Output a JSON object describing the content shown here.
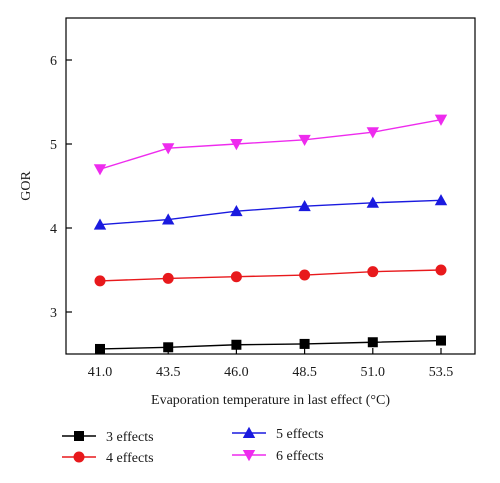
{
  "chart_data": {
    "type": "line",
    "x": [
      "41.0",
      "43.5",
      "46.0",
      "48.5",
      "51.0",
      "53.5"
    ],
    "xlabel": "Evaporation temperature in last effect (°C)",
    "ylabel": "GOR",
    "ylim": [
      2.5,
      6.5
    ],
    "yticks": [
      "3",
      "4",
      "5",
      "6"
    ],
    "grid": false,
    "legend_position": "bottom",
    "series": [
      {
        "name": "3 effects",
        "color": "#000000",
        "marker": "square",
        "values": [
          2.56,
          2.58,
          2.61,
          2.62,
          2.64,
          2.66
        ]
      },
      {
        "name": "4 effects",
        "color": "#e8191c",
        "marker": "circle",
        "values": [
          3.37,
          3.4,
          3.42,
          3.44,
          3.48,
          3.5
        ]
      },
      {
        "name": "5 effects",
        "color": "#1a1adf",
        "marker": "triangle-up",
        "values": [
          4.04,
          4.1,
          4.2,
          4.26,
          4.3,
          4.33
        ]
      },
      {
        "name": "6 effects",
        "color": "#ee2bee",
        "marker": "triangle-down",
        "values": [
          4.7,
          4.95,
          5.0,
          5.05,
          5.14,
          5.29
        ]
      }
    ]
  }
}
